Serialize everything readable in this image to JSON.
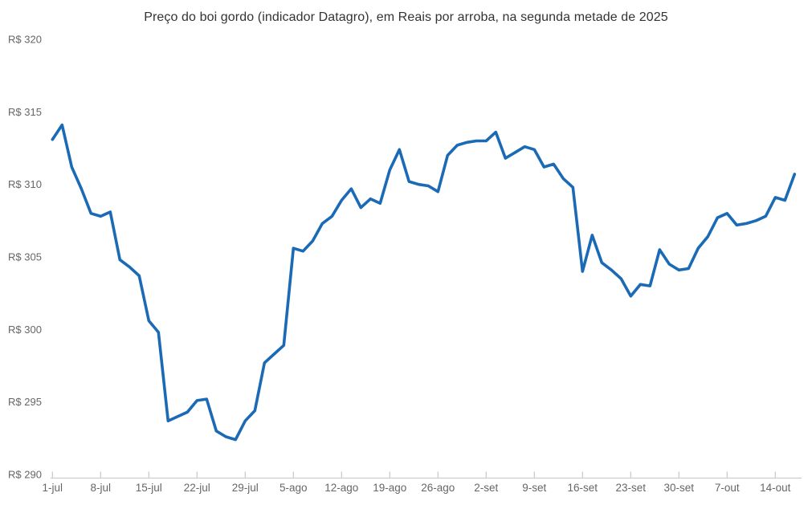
{
  "chart_data": {
    "type": "line",
    "title": "Preço do boi gordo (indicador Datagro), em Reais por arroba, na segunda metade de 2025",
    "xlabel": "",
    "ylabel": "",
    "currency_prefix": "R$",
    "ylim": [
      290,
      320
    ],
    "y_ticks": [
      320,
      315,
      310,
      305,
      300,
      295,
      290
    ],
    "y_tick_labels": [
      "R$ 320",
      "R$ 315",
      "R$ 310",
      "R$ 305",
      "R$ 300",
      "R$ 295",
      "R$ 290"
    ],
    "x_tick_labels": [
      "1-jul",
      "8-jul",
      "15-jul",
      "22-jul",
      "29-jul",
      "5-ago",
      "12-ago",
      "19-ago",
      "26-ago",
      "2-set",
      "9-set",
      "16-set",
      "23-set",
      "30-set",
      "7-out",
      "14-out"
    ],
    "x_tick_every_n_points": 5,
    "grid": "off",
    "legend": "none",
    "line_color": "#1a6ab5",
    "axis_color": "#cccccc",
    "label_color": "#666666",
    "title_color": "#333333",
    "series": [
      {
        "name": "Preço do boi gordo (R$/arroba)",
        "x": [
          "1-jul",
          "2-jul",
          "3-jul",
          "4-jul",
          "7-jul",
          "8-jul",
          "9-jul",
          "10-jul",
          "11-jul",
          "14-jul",
          "15-jul",
          "16-jul",
          "17-jul",
          "18-jul",
          "21-jul",
          "22-jul",
          "23-jul",
          "24-jul",
          "25-jul",
          "28-jul",
          "29-jul",
          "30-jul",
          "31-jul",
          "1-ago",
          "4-ago",
          "5-ago",
          "6-ago",
          "7-ago",
          "8-ago",
          "11-ago",
          "12-ago",
          "13-ago",
          "14-ago",
          "15-ago",
          "18-ago",
          "19-ago",
          "20-ago",
          "21-ago",
          "22-ago",
          "25-ago",
          "26-ago",
          "27-ago",
          "28-ago",
          "29-ago",
          "1-set",
          "2-set",
          "3-set",
          "4-set",
          "5-set",
          "8-set",
          "9-set",
          "10-set",
          "11-set",
          "12-set",
          "15-set",
          "16-set",
          "17-set",
          "18-set",
          "19-set",
          "22-set",
          "23-set",
          "24-set",
          "25-set",
          "26-set",
          "29-set",
          "30-set",
          "1-out",
          "2-out",
          "3-out",
          "6-out",
          "7-out",
          "8-out",
          "9-out",
          "10-out",
          "13-out",
          "14-out",
          "15-out",
          "16-out"
        ],
        "values": [
          313.1,
          314.1,
          311.2,
          309.7,
          308.0,
          307.8,
          308.1,
          304.8,
          304.3,
          303.7,
          300.6,
          299.8,
          293.7,
          294.0,
          294.3,
          295.1,
          295.2,
          293.0,
          292.6,
          292.4,
          293.7,
          294.4,
          297.7,
          298.3,
          298.9,
          305.6,
          305.4,
          306.1,
          307.3,
          307.8,
          308.9,
          309.7,
          308.4,
          309.0,
          308.7,
          311.0,
          312.4,
          310.2,
          310.0,
          309.9,
          309.5,
          312.0,
          312.7,
          312.9,
          313.0,
          313.0,
          313.6,
          311.8,
          312.2,
          312.6,
          312.4,
          311.2,
          311.4,
          310.4,
          309.8,
          304.0,
          306.5,
          304.6,
          304.1,
          303.5,
          302.3,
          303.1,
          303.0,
          305.5,
          304.5,
          304.1,
          304.2,
          305.6,
          306.4,
          307.7,
          308.0,
          307.2,
          307.3,
          307.5,
          307.8,
          309.1,
          308.9,
          310.7
        ]
      }
    ]
  }
}
